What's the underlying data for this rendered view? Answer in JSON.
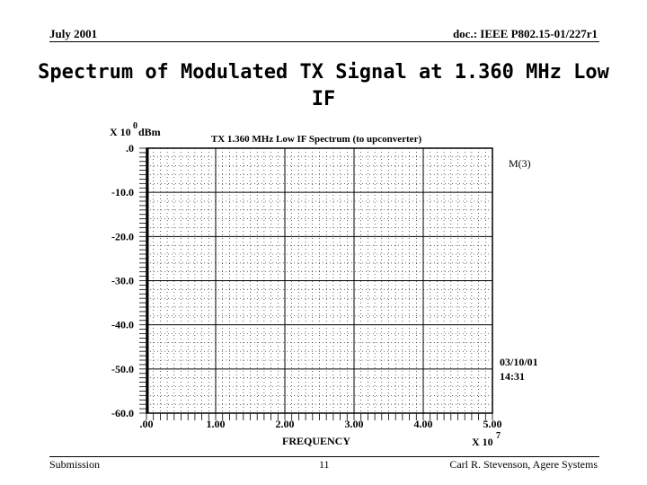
{
  "header": {
    "date": "July 2001",
    "doc": "doc.: IEEE P802.15-01/227r1"
  },
  "title": "Spectrum of Modulated TX Signal at 1.360 MHz Low IF",
  "chart_data": {
    "type": "line",
    "title": "TX 1.360 MHz Low IF Spectrum (to upconverter)",
    "x_label": "FREQUENCY",
    "x_scale": "X 10",
    "x_scale_exp": "7",
    "y_scale": "X 10",
    "y_scale_exp": "0",
    "y_unit": "dBm",
    "xlim": [
      0,
      5
    ],
    "xticks": [
      {
        "value": 0,
        "label": ".00"
      },
      {
        "value": 1,
        "label": "1.00"
      },
      {
        "value": 2,
        "label": "2.00"
      },
      {
        "value": 3,
        "label": "3.00"
      },
      {
        "value": 4,
        "label": "4.00"
      },
      {
        "value": 5,
        "label": "5.00"
      }
    ],
    "ylim": [
      -60,
      0
    ],
    "yticks": [
      {
        "value": 0,
        "label": ".0"
      },
      {
        "value": -10,
        "label": "-10.0"
      },
      {
        "value": -20,
        "label": "-20.0"
      },
      {
        "value": -30,
        "label": "-30.0"
      },
      {
        "value": -40,
        "label": "-40.0"
      },
      {
        "value": -50,
        "label": "-50.0"
      },
      {
        "value": -60,
        "label": "-60.0"
      }
    ],
    "grid": true,
    "marker_label": "M(3)",
    "date_stamp": "03/10/01",
    "time_stamp": "14:31"
  },
  "footer": {
    "left": "Submission",
    "page": "11",
    "right": "Carl R. Stevenson, Agere Systems"
  }
}
